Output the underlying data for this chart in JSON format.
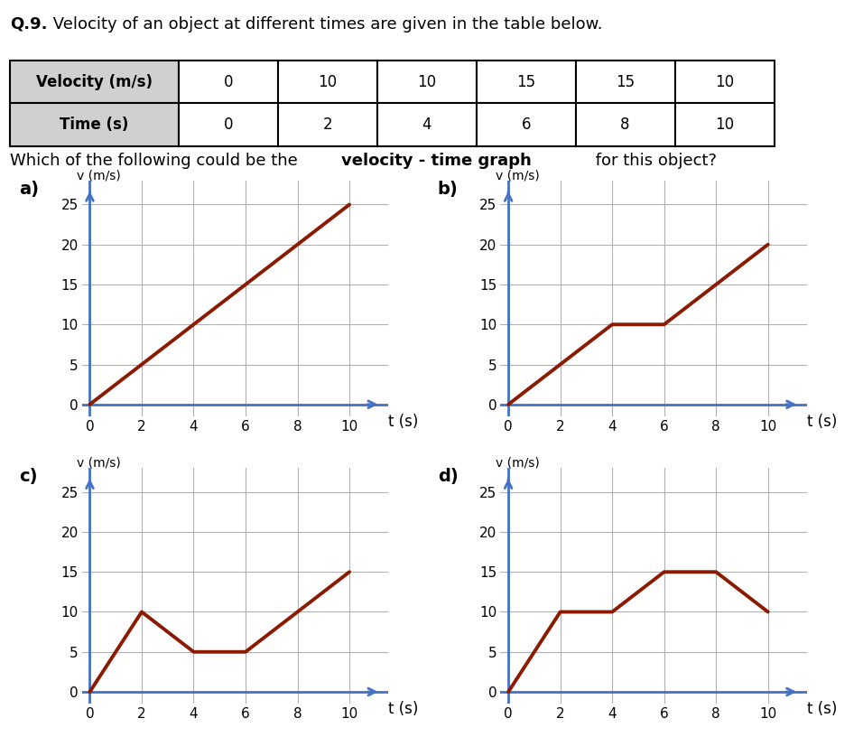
{
  "title_bold": "Q.9.",
  "title_rest": " Velocity of an object at different times are given in the table below.",
  "table_headers": [
    "Velocity (m/s)",
    "0",
    "10",
    "10",
    "15",
    "15",
    "10"
  ],
  "table_row2": [
    "Time (s)",
    "0",
    "2",
    "4",
    "6",
    "8",
    "10"
  ],
  "question_normal": "Which of the following could be the ",
  "question_bold": "velocity - time graph",
  "question_end": " for this object?",
  "graphs": {
    "a": {
      "t": [
        0,
        10
      ],
      "v": [
        0,
        25
      ]
    },
    "b": {
      "t": [
        0,
        4,
        6,
        10
      ],
      "v": [
        0,
        10,
        10,
        20
      ]
    },
    "c": {
      "t": [
        0,
        2,
        4,
        6,
        10
      ],
      "v": [
        0,
        10,
        5,
        5,
        15
      ]
    },
    "d": {
      "t": [
        0,
        2,
        4,
        6,
        8,
        10
      ],
      "v": [
        0,
        10,
        10,
        15,
        15,
        10
      ]
    }
  },
  "line_color": "#8B1A00",
  "line_width": 2.8,
  "axis_color": "#4472C4",
  "grid_color": "#B0B0B0",
  "bg_color": "#FFFFFF",
  "xlim": [
    -0.3,
    11.5
  ],
  "ylim": [
    -1.5,
    28
  ],
  "xticks": [
    0,
    2,
    4,
    6,
    8,
    10
  ],
  "yticks": [
    0,
    5,
    10,
    15,
    20,
    25
  ],
  "xlabel": "t (s)",
  "ylabel": "v (m/s)",
  "col_widths": [
    0.195,
    0.115,
    0.115,
    0.115,
    0.115,
    0.115,
    0.115
  ],
  "table_fill_first": "#D0D0D0",
  "font_size_title": 13,
  "font_size_table": 12,
  "font_size_question": 13,
  "font_size_tick": 11,
  "font_size_label": 12
}
